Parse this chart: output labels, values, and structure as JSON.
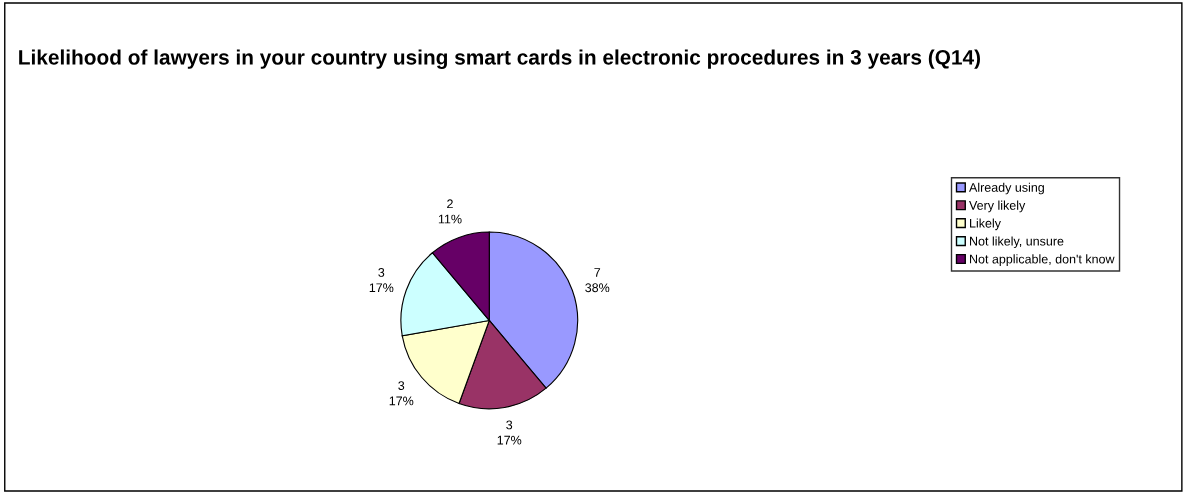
{
  "chart_data": {
    "type": "pie",
    "title": "Likelihood of lawyers in your country using smart cards in electronic procedures in 3 years (Q14)",
    "categories": [
      "Already using",
      "Very likely",
      "Likely",
      "Not likely, unsure",
      "Not applicable, don't know"
    ],
    "values": [
      7,
      3,
      3,
      3,
      2
    ],
    "colors": [
      "#9999ff",
      "#993366",
      "#ffffcc",
      "#ccffff",
      "#660066"
    ],
    "value_labels": [
      "7\n38%",
      "3\n17%",
      "3\n17%",
      "3\n17%",
      "2\n11%"
    ],
    "legend": "right"
  }
}
